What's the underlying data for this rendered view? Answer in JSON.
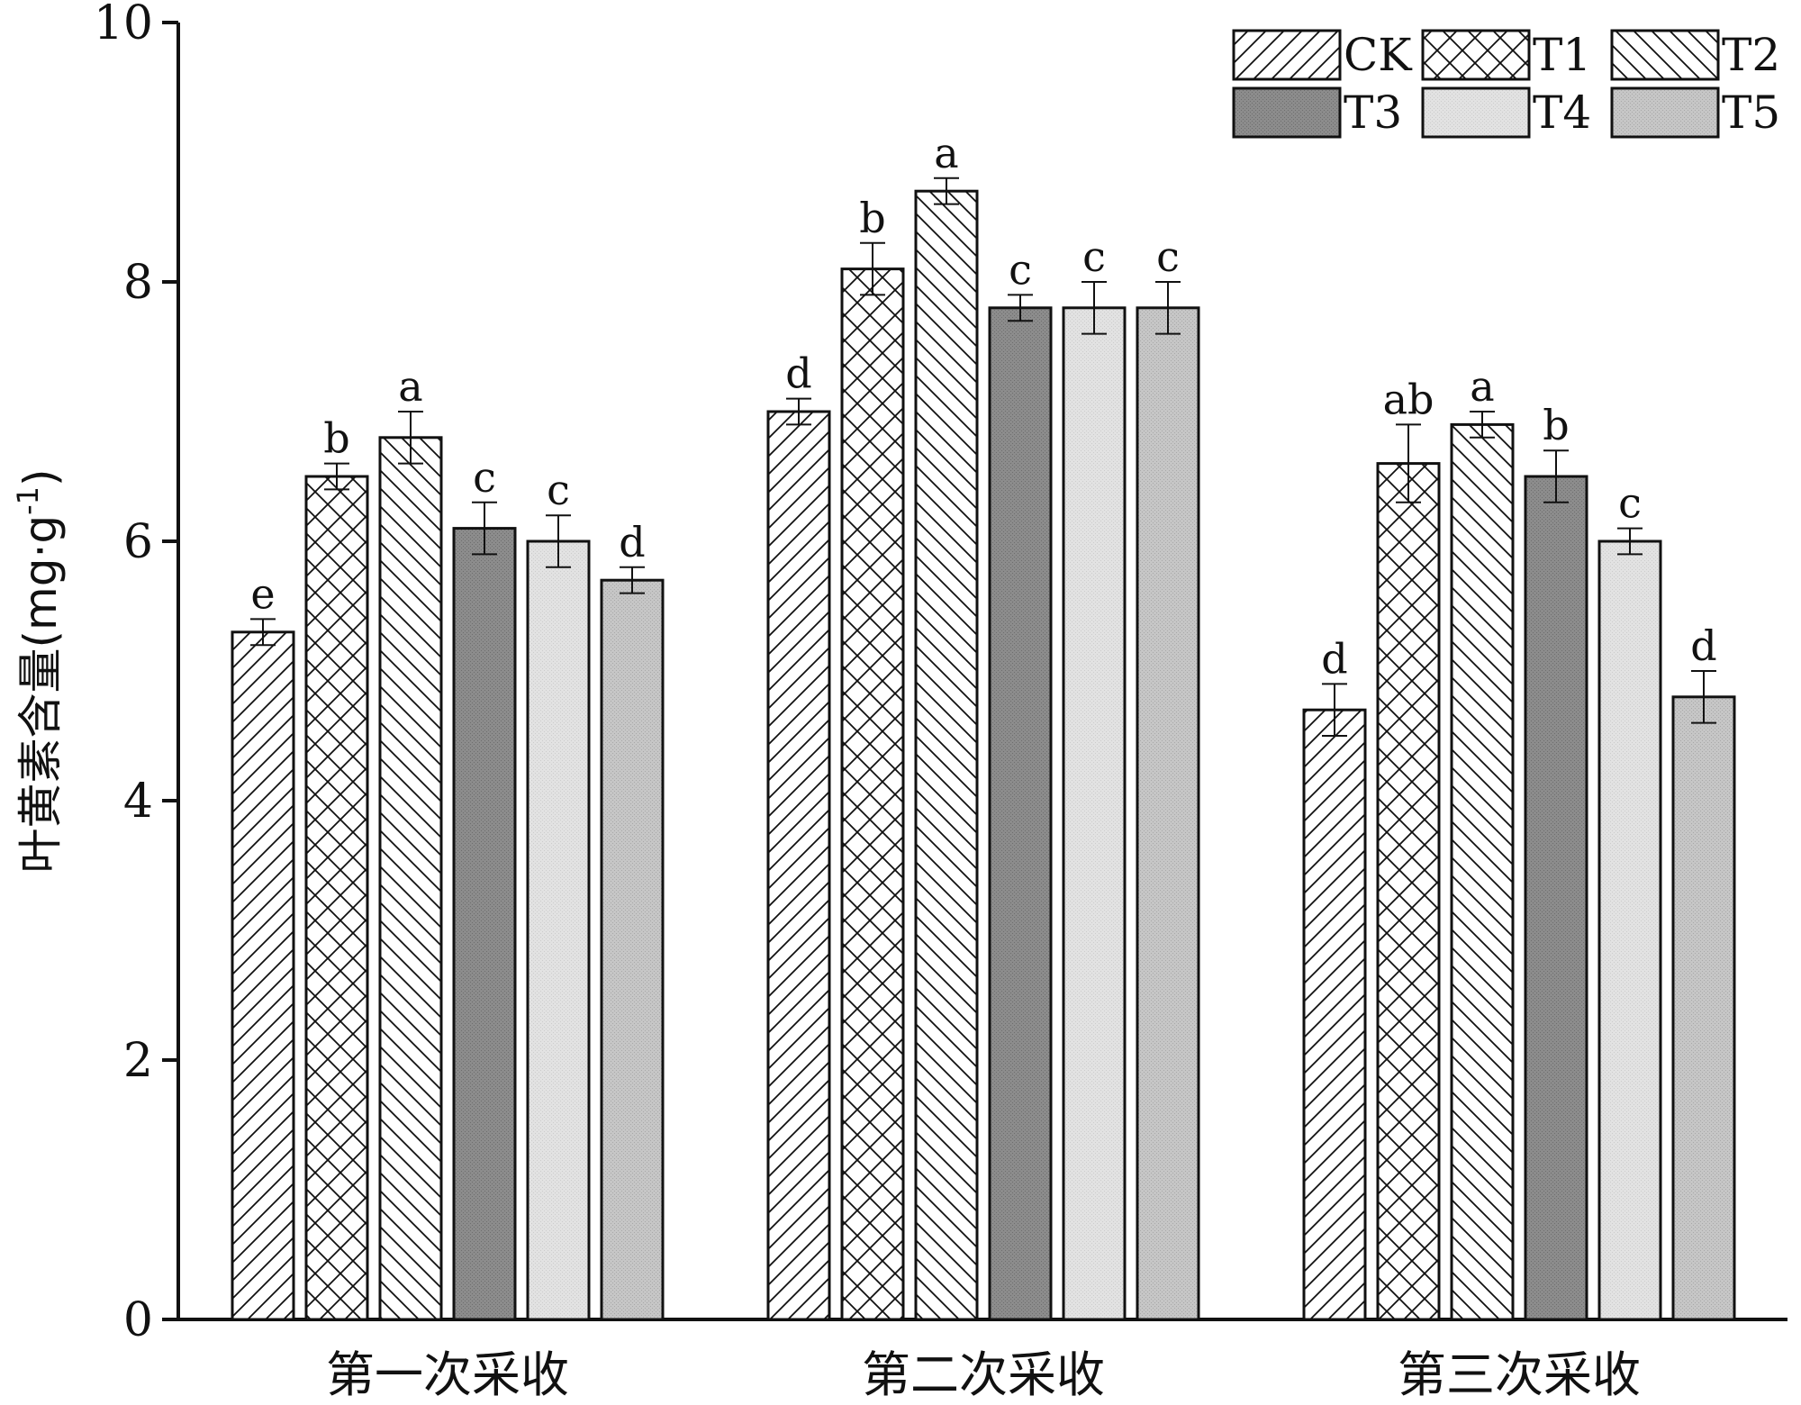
{
  "chart_data": {
    "type": "bar",
    "title": "",
    "xlabel": "",
    "ylabel": "叶黄素含量(mg·g",
    "ylabel_sup": "-1",
    "ylabel_close": ")",
    "ylim": [
      0,
      10
    ],
    "yticks": [
      "0",
      "2",
      "4",
      "6",
      "8",
      "10"
    ],
    "legend_position": "top-right",
    "categories": [
      "第一次采收",
      "第二次采收",
      "第三次采收"
    ],
    "series": [
      {
        "name": "CK",
        "pattern": "diag-up",
        "values": [
          5.3,
          7.0,
          4.7
        ],
        "errors": [
          0.1,
          0.1,
          0.2
        ],
        "labels": [
          "e",
          "d",
          "d"
        ]
      },
      {
        "name": "T1",
        "pattern": "cross",
        "values": [
          6.5,
          8.1,
          6.6
        ],
        "errors": [
          0.1,
          0.2,
          0.3
        ],
        "labels": [
          "b",
          "b",
          "ab"
        ]
      },
      {
        "name": "T2",
        "pattern": "diag-down",
        "values": [
          6.8,
          8.7,
          6.9
        ],
        "errors": [
          0.2,
          0.1,
          0.1
        ],
        "labels": [
          "a",
          "a",
          "a"
        ]
      },
      {
        "name": "T3",
        "pattern": "dark",
        "values": [
          6.1,
          7.8,
          6.5
        ],
        "errors": [
          0.2,
          0.1,
          0.2
        ],
        "labels": [
          "c",
          "c",
          "b"
        ]
      },
      {
        "name": "T4",
        "pattern": "light",
        "values": [
          6.0,
          7.8,
          6.0
        ],
        "errors": [
          0.2,
          0.2,
          0.1
        ],
        "labels": [
          "c",
          "c",
          "c"
        ]
      },
      {
        "name": "T5",
        "pattern": "medium",
        "values": [
          5.7,
          7.8,
          4.8
        ],
        "errors": [
          0.1,
          0.2,
          0.2
        ],
        "labels": [
          "d",
          "c",
          "d"
        ]
      }
    ],
    "colors": {
      "dark": "#8a8a8a",
      "light": "#e4e4e4",
      "medium": "#c4c4c4",
      "stroke": "#111111"
    }
  }
}
